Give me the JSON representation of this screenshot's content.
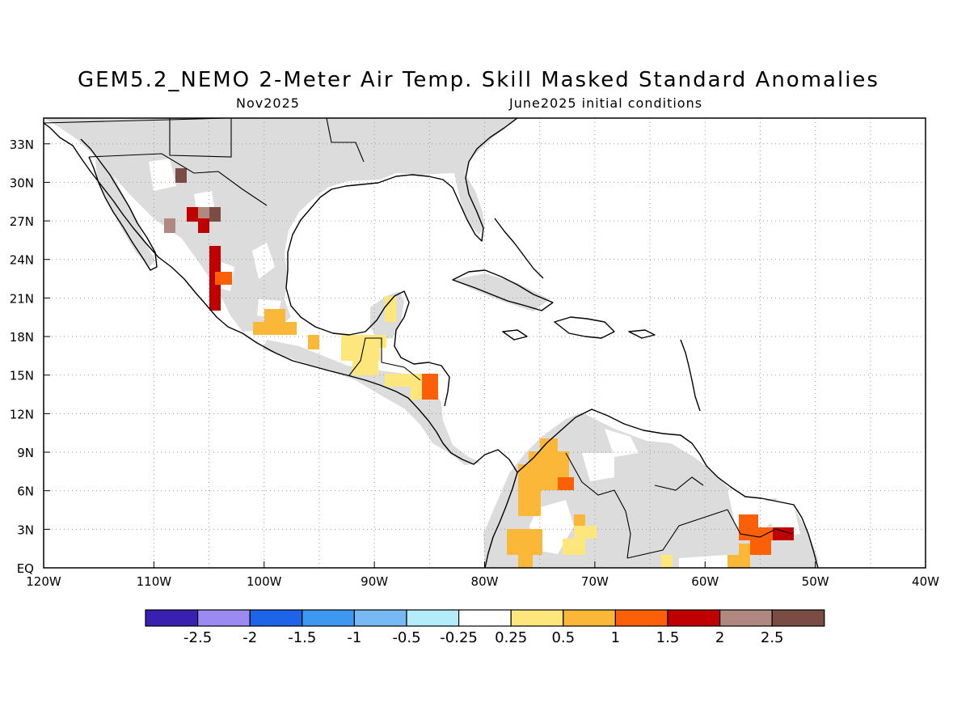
{
  "title": "GEM5.2_NEMO 2-Meter Air Temp. Skill Masked Standard Anomalies",
  "subtitle_left": "Nov2025",
  "subtitle_right": "June2025 initial conditions",
  "lat_labels": [
    "33N",
    "30N",
    "27N",
    "24N",
    "21N",
    "18N",
    "15N",
    "12N",
    "9N",
    "6N",
    "3N",
    "EQ"
  ],
  "lon_labels": [
    "120W",
    "110W",
    "100W",
    "90W",
    "80W",
    "70W",
    "60W",
    "50W",
    "40W"
  ],
  "colorbar": {
    "colors": [
      "#3a20b0",
      "#9a8af2",
      "#1e64e8",
      "#3c98f0",
      "#78b8f4",
      "#b4ecfa",
      "#ffffff",
      "#fde67c",
      "#fbb838",
      "#fb6008",
      "#c00000",
      "#b08880",
      "#7a4c44"
    ],
    "labels": [
      "-2.5",
      "-2",
      "-1.5",
      "-1",
      "-0.5",
      "-0.25",
      "0.25",
      "0.5",
      "1",
      "1.5",
      "2",
      "2.5"
    ]
  },
  "masked_color": "#dcdcdc"
}
